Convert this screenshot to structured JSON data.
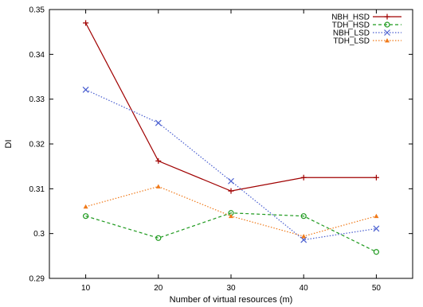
{
  "chart_data": {
    "type": "line",
    "title": "",
    "xlabel": "Number of virtual resources (m)",
    "ylabel": "DI",
    "x": [
      10,
      20,
      30,
      40,
      50
    ],
    "x_ticks": [
      "10",
      "20",
      "30",
      "40",
      "50"
    ],
    "xlim": [
      5,
      55
    ],
    "ylim": [
      0.29,
      0.35
    ],
    "y_ticks": [
      "0.29",
      "0.3",
      "0.31",
      "0.32",
      "0.33",
      "0.34",
      "0.35"
    ],
    "grid": false,
    "legend_position": "top-right",
    "series": [
      {
        "name": "NBH_HSD",
        "values": [
          0.347,
          0.3162,
          0.3095,
          0.3125,
          0.3125
        ],
        "color": "#a00000",
        "marker": "plus",
        "dash": "solid"
      },
      {
        "name": "TDH_HSD",
        "values": [
          0.3039,
          0.299,
          0.3046,
          0.3039,
          0.2959
        ],
        "color": "#1f9a1f",
        "marker": "circle",
        "dash": "dashed"
      },
      {
        "name": "NBH_LSD",
        "values": [
          0.3321,
          0.3247,
          0.3117,
          0.2986,
          0.3011
        ],
        "color": "#4a5fd0",
        "marker": "x",
        "dash": "dotted"
      },
      {
        "name": "TDH_LSD",
        "values": [
          0.306,
          0.3105,
          0.3039,
          0.2994,
          0.3039
        ],
        "color": "#f07a1a",
        "marker": "triangle",
        "dash": "dotted"
      }
    ]
  }
}
